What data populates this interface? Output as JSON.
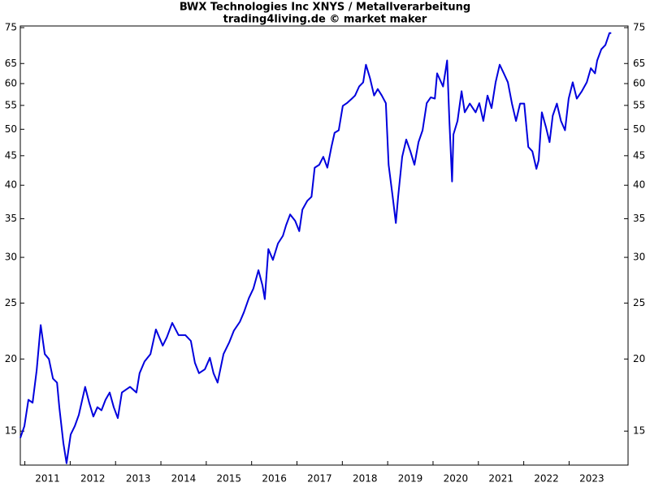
{
  "chart_data": {
    "type": "line",
    "title": "BWX Technologies Inc XNYS / Metallverarbeitung",
    "subtitle": "trading4living.de © market maker",
    "log_scale": true,
    "color": "#0000dd",
    "x": [
      2010.9,
      2010.99,
      2011.08,
      2011.17,
      2011.26,
      2011.35,
      2011.44,
      2011.53,
      2011.62,
      2011.71,
      2011.76,
      2011.85,
      2011.92,
      2012.01,
      2012.1,
      2012.19,
      2012.33,
      2012.42,
      2012.51,
      2012.6,
      2012.69,
      2012.78,
      2012.87,
      2012.96,
      2013.05,
      2013.14,
      2013.32,
      2013.46,
      2013.53,
      2013.64,
      2013.77,
      2013.89,
      2014.04,
      2014.13,
      2014.25,
      2014.39,
      2014.54,
      2014.66,
      2014.75,
      2014.84,
      2014.97,
      2015.08,
      2015.16,
      2015.25,
      2015.38,
      2015.51,
      2015.61,
      2015.74,
      2015.83,
      2015.94,
      2016.04,
      2016.15,
      2016.24,
      2016.29,
      2016.37,
      2016.47,
      2016.58,
      2016.69,
      2016.76,
      2016.85,
      2016.96,
      2017.05,
      2017.12,
      2017.23,
      2017.32,
      2017.39,
      2017.49,
      2017.58,
      2017.67,
      2017.76,
      2017.83,
      2017.92,
      2018.01,
      2018.1,
      2018.21,
      2018.28,
      2018.37,
      2018.46,
      2018.52,
      2018.61,
      2018.7,
      2018.78,
      2018.87,
      2018.96,
      2019.02,
      2019.11,
      2019.18,
      2019.23,
      2019.32,
      2019.41,
      2019.5,
      2019.59,
      2019.68,
      2019.77,
      2019.86,
      2019.95,
      2020.04,
      2020.09,
      2020.22,
      2020.31,
      2020.36,
      2020.42,
      2020.45,
      2020.54,
      2020.63,
      2020.7,
      2020.81,
      2020.94,
      2021.02,
      2021.11,
      2021.2,
      2021.29,
      2021.38,
      2021.47,
      2021.56,
      2021.65,
      2021.74,
      2021.83,
      2021.92,
      2022.01,
      2022.1,
      2022.19,
      2022.28,
      2022.33,
      2022.4,
      2022.49,
      2022.57,
      2022.64,
      2022.73,
      2022.82,
      2022.91,
      2022.99,
      2023.08,
      2023.17,
      2023.28,
      2023.39,
      2023.48,
      2023.57,
      2023.62,
      2023.71,
      2023.8,
      2023.89,
      2023.93
    ],
    "values": [
      14.6,
      15.3,
      17.0,
      16.8,
      19.1,
      22.9,
      20.4,
      20.0,
      18.5,
      18.2,
      16.5,
      14.3,
      13.2,
      14.8,
      15.3,
      16.0,
      17.9,
      16.8,
      15.9,
      16.5,
      16.3,
      17.0,
      17.5,
      16.5,
      15.8,
      17.5,
      17.9,
      17.5,
      18.9,
      19.8,
      20.4,
      22.5,
      21.1,
      21.8,
      23.1,
      22.0,
      22.0,
      21.5,
      19.7,
      18.9,
      19.2,
      20.1,
      18.9,
      18.2,
      20.4,
      21.4,
      22.4,
      23.2,
      24.1,
      25.5,
      26.5,
      28.5,
      26.8,
      25.4,
      31.0,
      29.7,
      31.7,
      32.7,
      34.1,
      35.6,
      34.7,
      33.3,
      36.3,
      37.6,
      38.2,
      42.9,
      43.4,
      44.8,
      42.9,
      46.6,
      49.3,
      49.8,
      54.9,
      55.5,
      56.5,
      57.2,
      59.3,
      60.3,
      64.7,
      61.3,
      57.2,
      58.7,
      57.2,
      55.5,
      43.4,
      38.2,
      34.4,
      38.2,
      44.8,
      48.0,
      45.8,
      43.4,
      47.5,
      49.8,
      55.5,
      56.8,
      56.5,
      62.5,
      59.3,
      65.8,
      51.7,
      40.6,
      49.0,
      51.7,
      58.2,
      53.5,
      55.4,
      53.5,
      55.5,
      51.7,
      57.2,
      54.4,
      60.3,
      64.7,
      62.5,
      60.3,
      55.4,
      51.7,
      55.4,
      55.4,
      46.6,
      45.8,
      42.7,
      44.2,
      53.5,
      50.4,
      47.5,
      52.8,
      55.4,
      51.7,
      49.8,
      56.5,
      60.3,
      56.5,
      58.2,
      60.3,
      63.8,
      62.5,
      65.8,
      68.8,
      70.0,
      73.4,
      73.4
    ],
    "xlim": [
      2010.9,
      2024.3
    ],
    "xticks": [
      2011,
      2012,
      2013,
      2014,
      2015,
      2016,
      2017,
      2018,
      2019,
      2020,
      2021,
      2022,
      2023
    ],
    "ylim": [
      13.1,
      75.5
    ],
    "yticks": [
      15,
      20,
      25,
      30,
      35,
      40,
      45,
      50,
      55,
      60,
      65,
      75
    ]
  }
}
